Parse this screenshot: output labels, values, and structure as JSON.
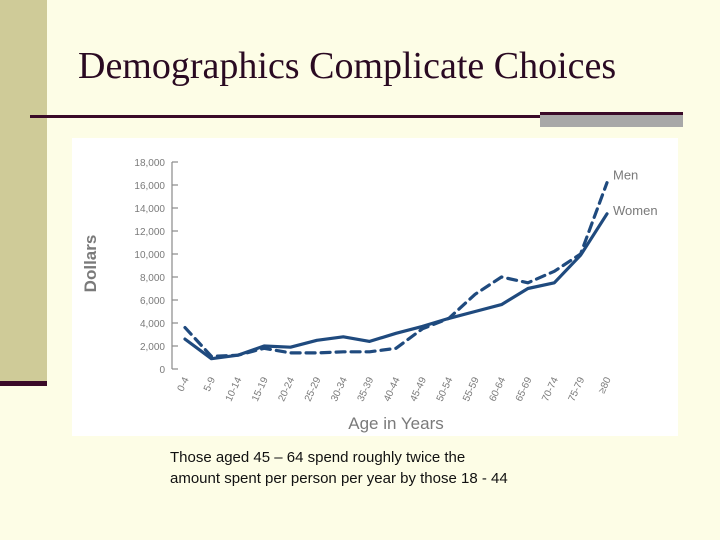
{
  "slide": {
    "title": "Demographics Complicate Choices",
    "caption_line1": "Those aged 45 – 64 spend roughly twice the",
    "caption_line2": "amount spent per person per year by those 18 - 44"
  },
  "colors": {
    "series": "#1f4a7e",
    "title": "#2a0a22",
    "band": "#cfcb98"
  },
  "chart_data": {
    "type": "line",
    "xlabel": "Age in Years",
    "ylabel": "Dollars",
    "categories": [
      "0-4",
      "5-9",
      "10-14",
      "15-19",
      "20-24",
      "25-29",
      "30-34",
      "35-39",
      "40-44",
      "45-49",
      "50-54",
      "55-59",
      "60-64",
      "65-69",
      "70-74",
      "75-79",
      "≥80"
    ],
    "ylim": [
      0,
      18000
    ],
    "yticks": [
      0,
      2000,
      4000,
      6000,
      8000,
      10000,
      12000,
      14000,
      16000,
      18000
    ],
    "ytick_labels": [
      "0",
      "2,000",
      "4,000",
      "6,000",
      "8,000",
      "10,000",
      "12,000",
      "14,000",
      "16,000",
      "18,000"
    ],
    "grid": false,
    "legend": "labels at right end of lines",
    "series": [
      {
        "name": "Men",
        "style": "dashed",
        "values": [
          3600,
          1100,
          1200,
          1800,
          1400,
          1400,
          1500,
          1500,
          1800,
          3500,
          4400,
          6500,
          8000,
          7500,
          8500,
          10000,
          16200
        ]
      },
      {
        "name": "Women",
        "style": "solid",
        "values": [
          2600,
          900,
          1200,
          2000,
          1900,
          2500,
          2800,
          2400,
          3100,
          3700,
          4400,
          5000,
          5600,
          7000,
          7500,
          9900,
          13500
        ]
      }
    ]
  }
}
